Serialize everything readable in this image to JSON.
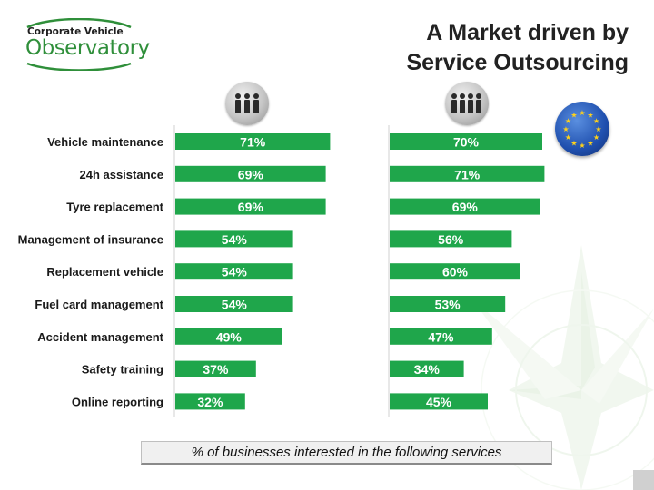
{
  "logo": {
    "line1": "Corporate Vehicle",
    "line2": "Observatory"
  },
  "title": {
    "line1": "A Market driven by",
    "line2": "Service Outsourcing"
  },
  "icons": {
    "left_column": "people-group-3-icon",
    "right_column": "people-group-4-icon",
    "badge": "eu-flag-icon"
  },
  "chart_data": {
    "type": "bar",
    "orientation": "horizontal",
    "categories": [
      "Vehicle maintenance",
      "24h assistance",
      "Tyre replacement",
      "Management of insurance",
      "Replacement vehicle",
      "Fuel card management",
      "Accident management",
      "Safety training",
      "Online reporting"
    ],
    "series": [
      {
        "values": [
          71,
          69,
          69,
          54,
          54,
          54,
          49,
          37,
          32
        ],
        "labels": [
          "71%",
          "69%",
          "69%",
          "54%",
          "54%",
          "54%",
          "49%",
          "37%",
          "32%"
        ]
      },
      {
        "values": [
          70,
          71,
          69,
          56,
          60,
          53,
          47,
          34,
          45
        ],
        "labels": [
          "70%",
          "71%",
          "69%",
          "56%",
          "60%",
          "53%",
          "47%",
          "34%",
          "45%"
        ]
      }
    ],
    "xlim": [
      0,
      100
    ],
    "caption": "% of businesses interested in the following services",
    "bar_color": "#1fa64b"
  }
}
